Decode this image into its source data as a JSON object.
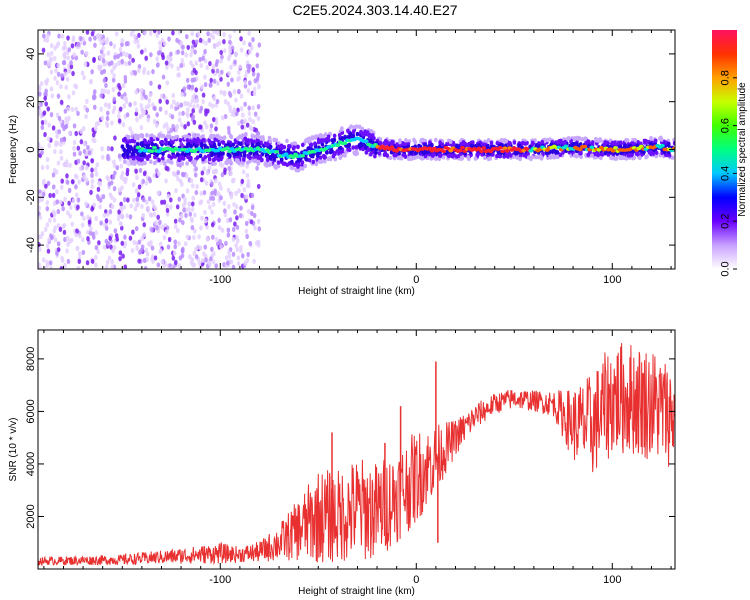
{
  "title": "C2E5.2024.303.14.40.E27",
  "chart_data": [
    {
      "type": "heatmap",
      "xlabel": "Height of straight line (km)",
      "ylabel": "Frequency (Hz)",
      "xlim": [
        -193,
        132
      ],
      "ylim": [
        -50,
        50
      ],
      "xticks": [
        -100,
        0,
        100
      ],
      "yticks": [
        -40,
        -20,
        0,
        20,
        40
      ],
      "colorbar": {
        "label": "Normalized spectral amplitude",
        "range": [
          0,
          1
        ],
        "ticks": [
          "0.0",
          "0.2",
          "0.4",
          "0.6",
          "0.8"
        ]
      },
      "ridge": {
        "x": [
          -140,
          -120,
          -100,
          -80,
          -70,
          -60,
          -50,
          -40,
          -35,
          -30,
          -25,
          -20,
          -10,
          0,
          20,
          40,
          60,
          80,
          100,
          110,
          120,
          125,
          132
        ],
        "y": [
          0,
          0,
          0,
          0,
          -2,
          -3,
          0,
          2,
          4,
          4,
          3,
          1,
          0,
          0,
          0,
          0,
          0,
          1,
          0,
          0,
          1,
          1,
          0
        ]
      }
    },
    {
      "type": "line",
      "xlabel": "Height of straight line (km)",
      "ylabel": "SNR (10 * v/v)",
      "xlim": [
        -193,
        132
      ],
      "ylim": [
        0,
        9100
      ],
      "xticks": [
        -100,
        0,
        100
      ],
      "yticks": [
        2000,
        4000,
        6000,
        8000
      ],
      "color": "#e83030",
      "envelope": {
        "x": [
          -193,
          -150,
          -120,
          -100,
          -90,
          -80,
          -70,
          -60,
          -50,
          -40,
          -30,
          -20,
          -10,
          0,
          10,
          20,
          30,
          40,
          50,
          60,
          70,
          80,
          90,
          100,
          110,
          120,
          132
        ],
        "mean": [
          300,
          350,
          500,
          600,
          550,
          650,
          1000,
          1500,
          2000,
          2000,
          2300,
          2200,
          2800,
          3500,
          4200,
          5000,
          5800,
          6300,
          6500,
          6400,
          6300,
          5500,
          5500,
          6500,
          6500,
          6300,
          5800
        ],
        "amp": [
          150,
          200,
          300,
          400,
          300,
          400,
          700,
          1200,
          1800,
          1800,
          2000,
          1900,
          1800,
          1800,
          1300,
          700,
          500,
          400,
          400,
          400,
          500,
          1400,
          2000,
          2200,
          2200,
          2200,
          2000
        ]
      },
      "spikes": [
        {
          "x": -43,
          "y": 5200
        },
        {
          "x": -16,
          "y": 4800
        },
        {
          "x": -8,
          "y": 6200
        },
        {
          "x": 10,
          "y": 7900
        },
        {
          "x": 11,
          "y": 1000
        }
      ]
    }
  ]
}
